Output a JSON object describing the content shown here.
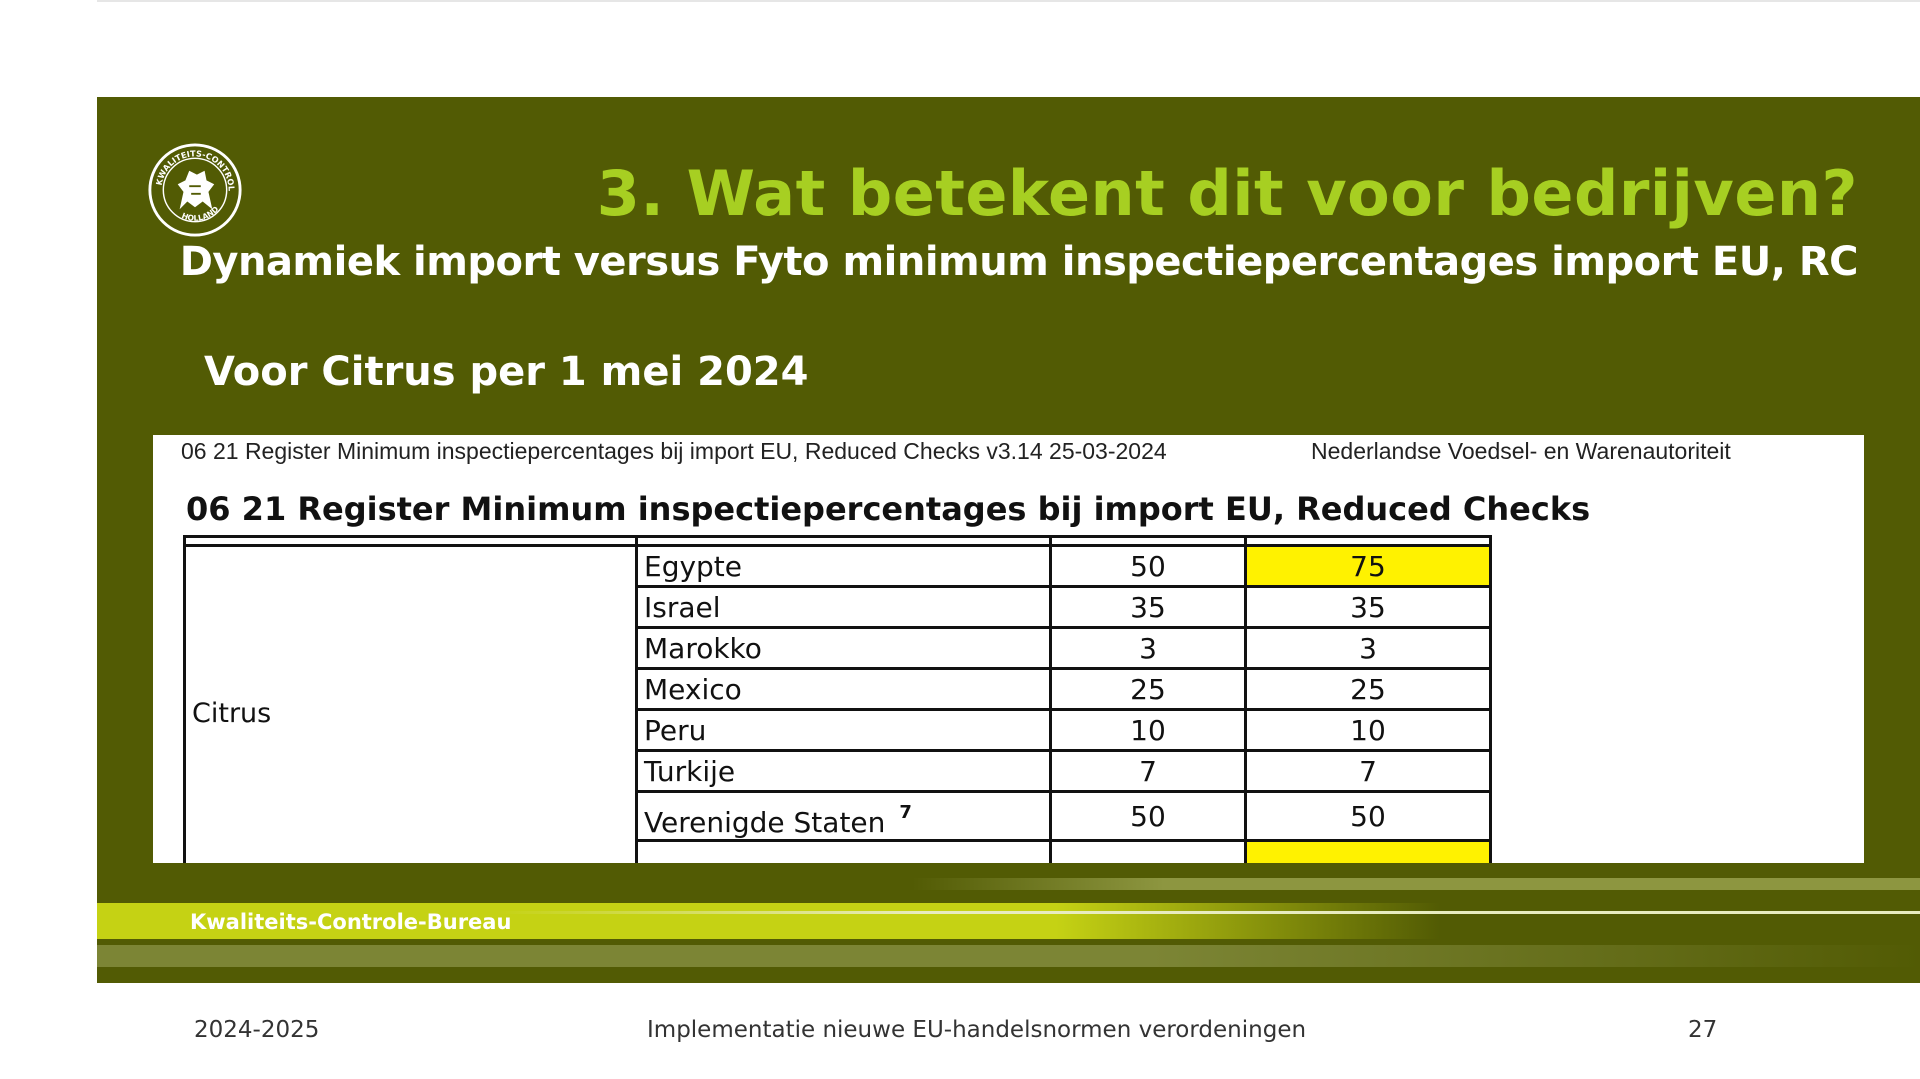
{
  "slide": {
    "title": "3. Wat betekent dit voor bedrijven?",
    "subtitle": "Dynamiek import versus Fyto minimum inspectiepercentages import EU, RC",
    "subtitle2": "Voor Citrus per 1 mei 2024",
    "logo_text": "KWALITEITS-CONTROLE-BUREAU HOLLAND",
    "brand_label": "Kwaliteits-Controle-Bureau"
  },
  "document": {
    "header_left": "06 21 Register Minimum inspectiepercentages bij import EU, Reduced Checks v3.14 25-03-2024",
    "header_right": "Nederlandse Voedsel- en Warenautoriteit",
    "title": "06 21 Register Minimum inspectiepercentages bij import EU, Reduced Checks",
    "product": "Citrus",
    "rows": [
      {
        "country": "Egypte",
        "value_a": "50",
        "value_b": "75",
        "highlight": true
      },
      {
        "country": "Israel",
        "value_a": "35",
        "value_b": "35",
        "highlight": false
      },
      {
        "country": "Marokko",
        "value_a": "3",
        "value_b": "3",
        "highlight": false
      },
      {
        "country": "Mexico",
        "value_a": "25",
        "value_b": "25",
        "highlight": false
      },
      {
        "country": "Peru",
        "value_a": "10",
        "value_b": "10",
        "highlight": false
      },
      {
        "country": "Turkije",
        "value_a": "7",
        "value_b": "7",
        "highlight": false
      },
      {
        "country": "Verenigde Staten",
        "value_a": "50",
        "value_b": "50",
        "highlight": false,
        "footnote": "7"
      }
    ]
  },
  "footer": {
    "year": "2024-2025",
    "center": "Implementatie nieuwe EU-handelsnormen verordeningen",
    "page": "27"
  },
  "colors": {
    "slide_bg": "#525b04",
    "title": "#a7cf22",
    "highlight": "#fff200",
    "band_lime": "#c5d214"
  }
}
